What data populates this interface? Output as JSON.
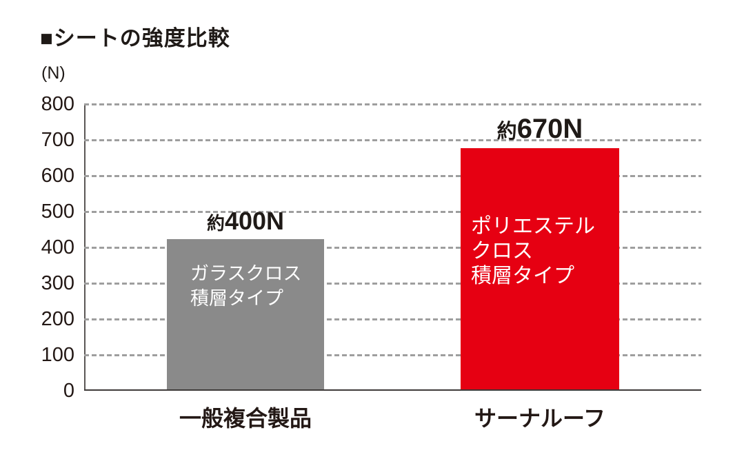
{
  "chart_data": {
    "type": "bar",
    "title": "■シートの強度比較",
    "unit_label": "(N)",
    "xlabel": "",
    "ylabel": "(N)",
    "ylim": [
      0,
      800
    ],
    "ytick_step": 100,
    "yticks": [
      800,
      700,
      600,
      500,
      400,
      300,
      200,
      100,
      0
    ],
    "grid": "horizontal-dashed",
    "legend_position": "none",
    "categories": [
      "一般複合製品",
      "サーナルーフ"
    ],
    "values": [
      400,
      670
    ],
    "bars": [
      {
        "category": "一般複合製品",
        "value": 400,
        "drawn_value": 420,
        "value_label_prefix": "約",
        "value_label_number": "400N",
        "inner_label_lines": [
          "ガラスクロス",
          "積層タイプ"
        ],
        "color": "#8a8a8a"
      },
      {
        "category": "サーナルーフ",
        "value": 670,
        "drawn_value": 673,
        "value_label_prefix": "約",
        "value_label_number": "670N",
        "inner_label_lines": [
          "ポリエステル",
          "クロス",
          "積層タイプ"
        ],
        "color": "#e60012"
      }
    ],
    "colors": {
      "bar_general": "#8a8a8a",
      "bar_sarnaroof": "#e60012",
      "gridline": "#9e9e9e",
      "y_axis_line": "#5a5654",
      "x_baseline": "#3e3a39",
      "text": "#231815",
      "inner_label_text": "#ffffff",
      "background": "#ffffff"
    }
  }
}
